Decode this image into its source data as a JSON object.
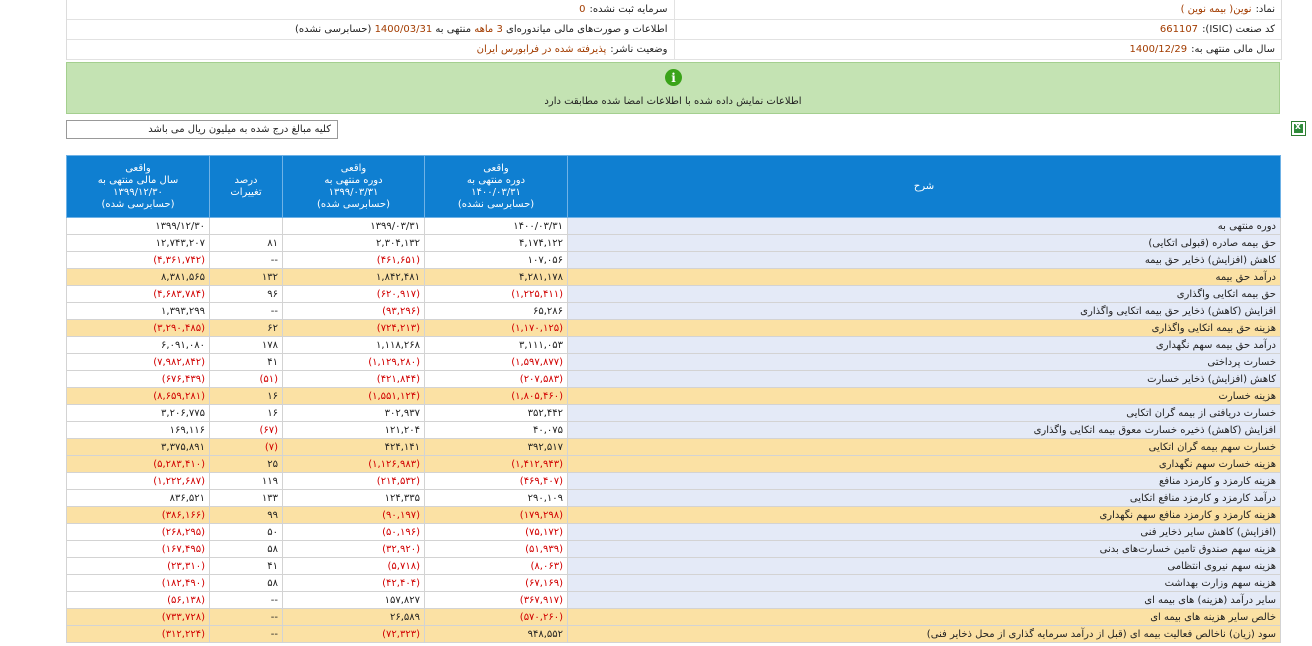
{
  "info": {
    "symbol_label": "نماد:",
    "symbol_value": "نوین( بیمه نوین )",
    "unregistered_capital_label": "سرمایه ثبت نشده:",
    "unregistered_capital_value": "0",
    "isic_label": "کد صنعت (ISIC):",
    "isic_value": "661107",
    "report_pre": "اطلاعات و صورت‌های مالی میاندوره‌ای",
    "report_period": "3 ماهه",
    "report_mid": "منتهی به",
    "report_date": "1400/03/31",
    "report_status": "(حسابرسی نشده)",
    "fiscal_year_label": "سال مالی منتهی به:",
    "fiscal_year_value": "1400/12/29",
    "publisher_status_label": "وضعیت ناشر:",
    "publisher_status_value": "پذیرفته شده در فرابورس ایران"
  },
  "notice": {
    "icon": "info-icon",
    "text": "اطلاعات نمایش داده شده با اطلاعات امضا شده مطابقت دارد"
  },
  "unit_note": "کلیه مبالغ درج شده به میلیون ریال می باشد",
  "export_icon": "excel-icon",
  "colors": {
    "header_bg": "#0f7fd1",
    "highlight_row": "#fbe1a4",
    "desc_bg": "#e4eaf7",
    "negative": "#d10000",
    "notice_bg": "#c4e3b3"
  },
  "table": {
    "headers": {
      "desc": "شرح",
      "c1": [
        "واقعی",
        "دوره منتهی به",
        "۱۴۰۰/۰۳/۳۱",
        "(حسابرسی نشده)"
      ],
      "c2": [
        "واقعی",
        "دوره منتهی به",
        "۱۳۹۹/۰۳/۳۱",
        "(حسابرسی شده)"
      ],
      "c3": [
        "درصد",
        "تغییرات"
      ],
      "c4": [
        "واقعی",
        "سال مالی منتهی به",
        "۱۳۹۹/۱۲/۳۰",
        "(حسابرسی شده)"
      ]
    },
    "rows": [
      {
        "desc": "دوره منتهی به",
        "c1": "۱۴۰۰/۰۳/۳۱",
        "c2": "۱۳۹۹/۰۳/۳۱",
        "c3": "",
        "c4": "۱۳۹۹/۱۲/۳۰",
        "hl": false
      },
      {
        "desc": "حق بیمه صادره (قبولی اتکایی)",
        "c1": "۴,۱۷۴,۱۲۲",
        "c2": "۲,۳۰۴,۱۳۲",
        "c3": "۸۱",
        "c4": "۱۲,۷۴۳,۲۰۷",
        "hl": false
      },
      {
        "desc": "کاهش (افزایش) ذخایر حق بیمه",
        "c1": "۱۰۷,۰۵۶",
        "c2": "(۴۶۱,۶۵۱)",
        "c3": "--",
        "c4": "(۴,۳۶۱,۷۴۲)",
        "hl": false
      },
      {
        "desc": "درآمد حق بیمه",
        "c1": "۴,۲۸۱,۱۷۸",
        "c2": "۱,۸۴۲,۴۸۱",
        "c3": "۱۳۲",
        "c4": "۸,۳۸۱,۵۶۵",
        "hl": true
      },
      {
        "desc": "حق بیمه اتکایی واگذاری",
        "c1": "(۱,۲۲۵,۴۱۱)",
        "c2": "(۶۲۰,۹۱۷)",
        "c3": "۹۶",
        "c4": "(۴,۶۸۳,۷۸۴)",
        "hl": false
      },
      {
        "desc": "افزایش (کاهش) ذخایر حق بیمه اتکایی واگذاری",
        "c1": "۶۵,۲۸۶",
        "c2": "(۹۳,۲۹۶)",
        "c3": "--",
        "c4": "۱,۳۹۳,۲۹۹",
        "hl": false
      },
      {
        "desc": "هزینه حق بیمه اتکایی واگذاری",
        "c1": "(۱,۱۷۰,۱۲۵)",
        "c2": "(۷۲۴,۲۱۳)",
        "c3": "۶۲",
        "c4": "(۳,۲۹۰,۴۸۵)",
        "hl": true
      },
      {
        "desc": "درآمد حق بیمه سهم نگهداری",
        "c1": "۳,۱۱۱,۰۵۳",
        "c2": "۱,۱۱۸,۲۶۸",
        "c3": "۱۷۸",
        "c4": "۶,۰۹۱,۰۸۰",
        "hl": false
      },
      {
        "desc": "خسارت پرداختی",
        "c1": "(۱,۵۹۷,۸۷۷)",
        "c2": "(۱,۱۲۹,۲۸۰)",
        "c3": "۴۱",
        "c4": "(۷,۹۸۲,۸۴۲)",
        "hl": false
      },
      {
        "desc": "کاهش (افزایش) ذخایر خسارت",
        "c1": "(۲۰۷,۵۸۳)",
        "c2": "(۴۲۱,۸۴۴)",
        "c3": "(۵۱)",
        "c4": "(۶۷۶,۴۳۹)",
        "hl": false
      },
      {
        "desc": "هزینه خسارت",
        "c1": "(۱,۸۰۵,۴۶۰)",
        "c2": "(۱,۵۵۱,۱۲۴)",
        "c3": "۱۶",
        "c4": "(۸,۶۵۹,۲۸۱)",
        "hl": true
      },
      {
        "desc": "خسارت دریافتی از بیمه گران اتکایی",
        "c1": "۳۵۲,۴۴۲",
        "c2": "۳۰۲,۹۳۷",
        "c3": "۱۶",
        "c4": "۳,۲۰۶,۷۷۵",
        "hl": false
      },
      {
        "desc": "افزایش (کاهش) ذخیره خسارت معوق بیمه اتکایی واگذاری",
        "c1": "۴۰,۰۷۵",
        "c2": "۱۲۱,۲۰۴",
        "c3": "(۶۷)",
        "c4": "۱۶۹,۱۱۶",
        "hl": false
      },
      {
        "desc": "خسارت سهم بیمه گران اتکایی",
        "c1": "۳۹۲,۵۱۷",
        "c2": "۴۲۴,۱۴۱",
        "c3": "(۷)",
        "c4": "۳,۳۷۵,۸۹۱",
        "hl": true
      },
      {
        "desc": "هزینه خسارت سهم نگهداری",
        "c1": "(۱,۴۱۲,۹۴۳)",
        "c2": "(۱,۱۲۶,۹۸۳)",
        "c3": "۲۵",
        "c4": "(۵,۲۸۳,۴۱۰)",
        "hl": true
      },
      {
        "desc": "هزینه کارمزد و کارمزد منافع",
        "c1": "(۴۶۹,۴۰۷)",
        "c2": "(۲۱۴,۵۳۲)",
        "c3": "۱۱۹",
        "c4": "(۱,۲۲۲,۶۸۷)",
        "hl": false
      },
      {
        "desc": "درآمد کارمزد و کارمزد منافع اتکایی",
        "c1": "۲۹۰,۱۰۹",
        "c2": "۱۲۴,۳۳۵",
        "c3": "۱۳۳",
        "c4": "۸۳۶,۵۲۱",
        "hl": false
      },
      {
        "desc": "هزینه کارمزد و کارمزد منافع سهم نگهداری",
        "c1": "(۱۷۹,۲۹۸)",
        "c2": "(۹۰,۱۹۷)",
        "c3": "۹۹",
        "c4": "(۳۸۶,۱۶۶)",
        "hl": true
      },
      {
        "desc": "(افزایش) کاهش سایر ذخایر فنی",
        "c1": "(۷۵,۱۷۲)",
        "c2": "(۵۰,۱۹۶)",
        "c3": "۵۰",
        "c4": "(۲۶۸,۲۹۵)",
        "hl": false
      },
      {
        "desc": "هزینه سهم صندوق تامین خسارت‌های بدنی",
        "c1": "(۵۱,۹۳۹)",
        "c2": "(۳۲,۹۲۰)",
        "c3": "۵۸",
        "c4": "(۱۶۷,۴۹۵)",
        "hl": false
      },
      {
        "desc": "هزینه سهم نیروی انتظامی",
        "c1": "(۸,۰۶۳)",
        "c2": "(۵,۷۱۸)",
        "c3": "۴۱",
        "c4": "(۲۳,۳۱۰)",
        "hl": false
      },
      {
        "desc": "هزینه سهم وزارت بهداشت",
        "c1": "(۶۷,۱۶۹)",
        "c2": "(۴۲,۴۰۴)",
        "c3": "۵۸",
        "c4": "(۱۸۲,۴۹۰)",
        "hl": false
      },
      {
        "desc": "سایر درآمد (هزینه) های بیمه ای",
        "c1": "(۳۶۷,۹۱۷)",
        "c2": "۱۵۷,۸۲۷",
        "c3": "--",
        "c4": "(۵۶,۱۳۸)",
        "hl": false
      },
      {
        "desc": "خالص سایر هزینه های بیمه ای",
        "c1": "(۵۷۰,۲۶۰)",
        "c2": "۲۶,۵۸۹",
        "c3": "--",
        "c4": "(۷۳۳,۷۲۸)",
        "hl": true
      },
      {
        "desc": "سود (زیان) ناخالص فعالیت بیمه ای (قبل از درآمد سرمایه گذاری از محل ذخایر فنی)",
        "c1": "۹۴۸,۵۵۲",
        "c2": "(۷۲,۳۲۳)",
        "c3": "--",
        "c4": "(۳۱۲,۲۲۴)",
        "hl": true
      }
    ]
  }
}
